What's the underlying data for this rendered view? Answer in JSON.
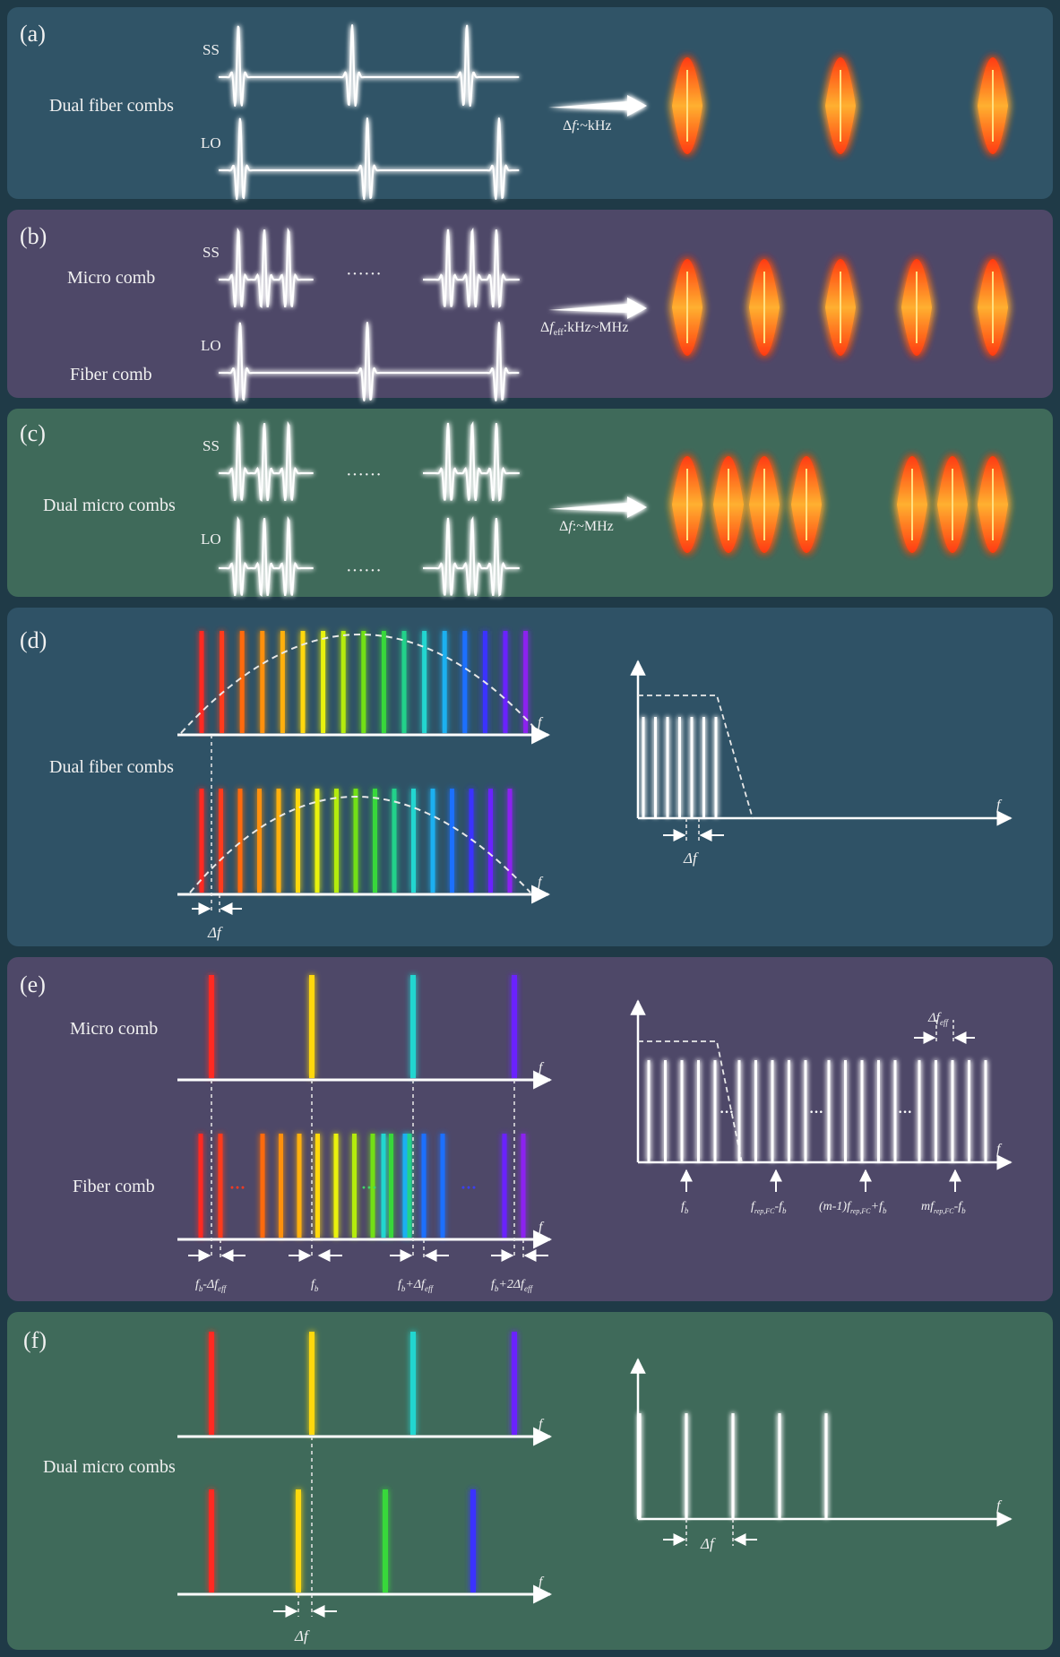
{
  "colors": {
    "bg": "#1f3a47",
    "panel_a": "#305467",
    "panel_b": "#4e4868",
    "panel_c": "#3f6a5a",
    "panel_d": "#2f5266",
    "panel_e": "#4e4868",
    "panel_f": "#3f6a5a",
    "spectrum": [
      "#ff2b20",
      "#ff3a1a",
      "#ff6a10",
      "#ff9010",
      "#ffb010",
      "#ffd810",
      "#e9f210",
      "#b4ec10",
      "#72e018",
      "#38d83a",
      "#22d28a",
      "#22d6d0",
      "#1fb0f0",
      "#1f70ff",
      "#3a32ff",
      "#6a20ff",
      "#8c20f0"
    ]
  },
  "panels": {
    "a": {
      "tag": "(a)",
      "title": "Dual fiber combs",
      "ss_label": "SS",
      "lo_label": "LO",
      "arrow_label_pre": "Δ",
      "arrow_label_italic": "f",
      "arrow_label_post": ":~kHz"
    },
    "b": {
      "tag": "(b)",
      "title_top": "Micro comb",
      "title_bottom": "Fiber comb",
      "ss_label": "SS",
      "lo_label": "LO",
      "dots": "······",
      "arrow_label_pre": "Δ",
      "arrow_label_italic": "f",
      "arrow_label_sub": "eff",
      "arrow_label_post": ":kHz~MHz"
    },
    "c": {
      "tag": "(c)",
      "title": "Dual micro combs",
      "ss_label": "SS",
      "lo_label": "LO",
      "dots": "······",
      "arrow_label_pre": "Δ",
      "arrow_label_italic": "f",
      "arrow_label_post": ":~MHz"
    },
    "d": {
      "tag": "(d)",
      "title": "Dual fiber combs",
      "axis_f": "f",
      "delta_f": "Δf"
    },
    "e": {
      "tag": "(e)",
      "title_top": "Micro comb",
      "title_bottom": "Fiber comb",
      "axis_f": "f",
      "ellipsis": "···",
      "lab1_main": "f",
      "lab1_sub": "b",
      "lab1_tail": "-Δf",
      "lab1_sub2": "eff",
      "lab2_main": "f",
      "lab2_sub": "b",
      "lab3_main": "f",
      "lab3_sub": "b",
      "lab3_tail": "+Δf",
      "lab3_sub2": "eff",
      "lab4_main": "f",
      "lab4_sub": "b",
      "lab4_tail": "+2Δf",
      "lab4_sub2": "eff",
      "rf_delta": "Δf",
      "rf_delta_sub": "eff",
      "rf1_main": "f",
      "rf1_sub": "b",
      "rf2_main": "f",
      "rf2_sub": "rep,FC",
      "rf2_tail": "-f",
      "rf2_sub2": "b",
      "rf3_pre": "(m-1)f",
      "rf3_sub": "rep,FC",
      "rf3_tail": "+f",
      "rf3_sub2": "b",
      "rf4_pre": "mf",
      "rf4_sub": "rep,FC",
      "rf4_tail": "-f",
      "rf4_sub2": "b"
    },
    "f": {
      "tag": "(f)",
      "title": "Dual micro combs",
      "axis_f": "f",
      "delta_f": "Δf"
    }
  }
}
